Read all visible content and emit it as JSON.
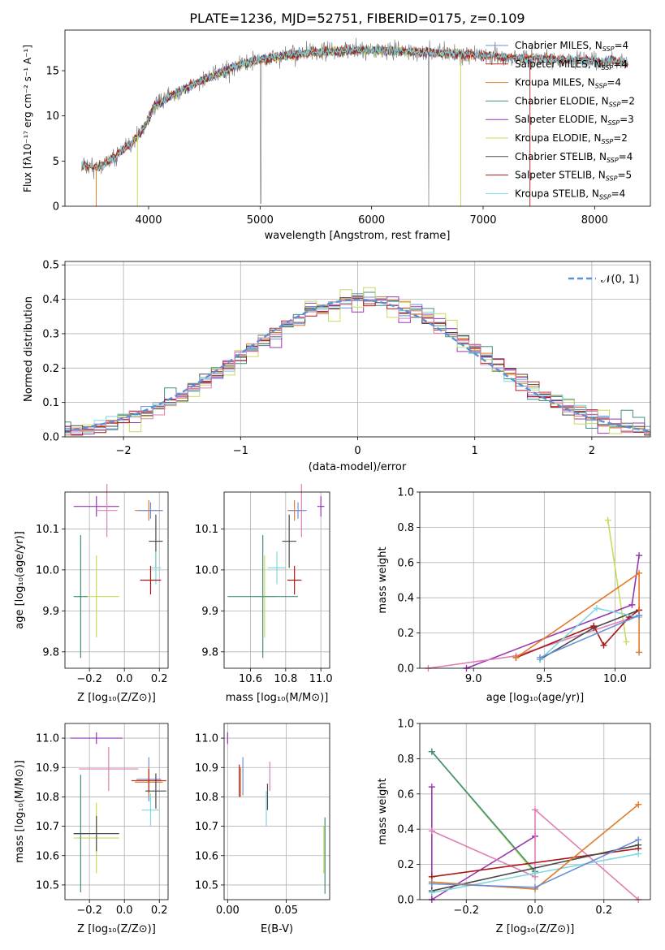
{
  "title": "PLATE=1236, MJD=52751, FIBERID=0175, z=0.109",
  "colors": {
    "chabrier_miles": "#6a8fd8",
    "salpeter_miles": "#b83225",
    "kroupa_miles": "#e07b27",
    "chabrier_elodie": "#3f8f7f",
    "salpeter_elodie": "#9a37b3",
    "kroupa_elodie": "#c6dc5a",
    "chabrier_stelib": "#4a4a4a",
    "salpeter_stelib": "#a81a1a",
    "kroupa_stelib": "#7fd8e0",
    "pink": "#e07fb3",
    "gray": "#808080",
    "gauss": "#5b8fd6"
  },
  "spectrum": {
    "xlabel": "wavelength [Angstrom, rest frame]",
    "ylabel": "Flux [fλ10⁻¹⁷ erg cm⁻² s⁻¹ A⁻¹]",
    "xticks": [
      "4000",
      "5000",
      "6000",
      "7000",
      "8000"
    ],
    "yticks": [
      "0",
      "5",
      "10",
      "15"
    ],
    "legend": [
      {
        "label": "Chabrier MILES, N",
        "sub": "SSP",
        "tail": "=4"
      },
      {
        "label": "Salpeter MILES, N",
        "sub": "SSP",
        "tail": "=4"
      },
      {
        "label": "Kroupa MILES, N",
        "sub": "SSP",
        "tail": "=4"
      },
      {
        "label": "Chabrier ELODIE, N",
        "sub": "SSP",
        "tail": "=2"
      },
      {
        "label": "Salpeter ELODIE, N",
        "sub": "SSP",
        "tail": "=3"
      },
      {
        "label": "Kroupa ELODIE, N",
        "sub": "SSP",
        "tail": "=2"
      },
      {
        "label": "Chabrier STELIB, N",
        "sub": "SSP",
        "tail": "=4"
      },
      {
        "label": "Salpeter STELIB, N",
        "sub": "SSP",
        "tail": "=5"
      },
      {
        "label": "Kroupa STELIB, N",
        "sub": "SSP",
        "tail": "=4"
      }
    ]
  },
  "histogram": {
    "xlabel": "(data-model)/error",
    "ylabel": "Normed distribution",
    "xticks": [
      "−2",
      "−1",
      "0",
      "1",
      "2"
    ],
    "yticks": [
      "0.0",
      "0.1",
      "0.2",
      "0.3",
      "0.4",
      "0.5"
    ],
    "legend": "𝒩(0, 1)"
  },
  "panels": {
    "p3": {
      "xlabel": "Z [log₁₀(Z/Z⊙)]",
      "ylabel": "age  [log₁₀(age/yr)]",
      "xticks": [
        "−0.2",
        "0.0",
        "0.2"
      ],
      "yticks": [
        "9.8",
        "9.9",
        "10.0",
        "10.1"
      ]
    },
    "p4": {
      "xlabel": "mass [log₁₀(M/M⊙)]",
      "xticks": [
        "10.6",
        "10.8",
        "11.0"
      ],
      "yticks": [
        "9.8",
        "9.9",
        "10.0",
        "10.1"
      ]
    },
    "p5": {
      "xlabel": "age  [log₁₀(age/yr)]",
      "ylabel": "mass weight",
      "xticks": [
        "9.0",
        "9.5",
        "10.0"
      ],
      "yticks": [
        "0.0",
        "0.2",
        "0.4",
        "0.6",
        "0.8",
        "1.0"
      ]
    },
    "p6": {
      "xlabel": "Z [log₁₀(Z/Z⊙)]",
      "ylabel": "mass [log₁₀(M/M⊙)]",
      "xticks": [
        "−0.2",
        "0.0",
        "0.2"
      ],
      "yticks": [
        "10.5",
        "10.6",
        "10.7",
        "10.8",
        "10.9",
        "11.0"
      ]
    },
    "p7": {
      "xlabel": "E(B-V)",
      "xticks": [
        "0.00",
        "0.05"
      ],
      "yticks": [
        "10.5",
        "10.6",
        "10.7",
        "10.8",
        "10.9",
        "11.0"
      ]
    },
    "p8": {
      "xlabel": "Z [log₁₀(Z/Z⊙)]",
      "ylabel": "mass weight",
      "xticks": [
        "−0.2",
        "0.0",
        "0.2"
      ],
      "yticks": [
        "0.0",
        "0.2",
        "0.4",
        "0.6",
        "0.8",
        "1.0"
      ]
    }
  },
  "chart_data": [
    {
      "type": "line",
      "title": "PLATE=1236, MJD=52751, FIBERID=0175, z=0.109",
      "xlabel": "wavelength [Angstrom, rest frame]",
      "ylabel": "Flux [fλ10⁻¹⁷ erg cm⁻² s⁻¹ A⁻¹]",
      "xlim": [
        3250,
        8500
      ],
      "ylim": [
        0,
        19.5
      ],
      "continuum": {
        "x": [
          3400,
          3550,
          3700,
          3850,
          3950,
          4050,
          4200,
          4400,
          4600,
          4800,
          5000,
          5200,
          5400,
          5600,
          5800,
          6000,
          6200,
          6400,
          6600,
          6800,
          7000,
          7200,
          7400,
          7600,
          7800,
          8000,
          8200,
          8300
        ],
        "y": [
          4.6,
          4.3,
          5.5,
          7.0,
          8.5,
          11.0,
          12.2,
          13.5,
          14.5,
          15.6,
          16.2,
          16.6,
          16.9,
          17.1,
          17.2,
          17.3,
          17.2,
          17.1,
          17.0,
          16.8,
          16.7,
          16.5,
          16.4,
          16.3,
          16.2,
          16.1,
          16.0,
          15.9
        ]
      },
      "series": [
        {
          "name": "Chabrier MILES, N_SSP=4"
        },
        {
          "name": "Salpeter MILES, N_SSP=4"
        },
        {
          "name": "Kroupa MILES, N_SSP=4"
        },
        {
          "name": "Chabrier ELODIE, N_SSP=2"
        },
        {
          "name": "Salpeter ELODIE, N_SSP=3"
        },
        {
          "name": "Kroupa ELODIE, N_SSP=2"
        },
        {
          "name": "Chabrier STELIB, N_SSP=4"
        },
        {
          "name": "Salpeter STELIB, N_SSP=5"
        },
        {
          "name": "Kroupa STELIB, N_SSP=4"
        }
      ]
    },
    {
      "type": "bar",
      "xlabel": "(data-model)/error",
      "ylabel": "Normed distribution",
      "xlim": [
        -2.5,
        2.5
      ],
      "ylim": [
        0,
        0.51
      ],
      "bin_width": 0.1,
      "gaussian": {
        "name": "𝒩(0, 1)",
        "mean": 0,
        "sigma": 1
      }
    },
    {
      "type": "scatter",
      "xlabel": "Z [log₁₀(Z/Z⊙)]",
      "ylabel": "age  [log₁₀(age/yr)]",
      "xlim": [
        -0.34,
        0.25
      ],
      "ylim": [
        9.76,
        10.19
      ],
      "points": [
        {
          "c": "kroupa_elodie",
          "x": -0.16,
          "y": 9.935,
          "xerr": 0.13,
          "yerr": 0.1
        },
        {
          "c": "chabrier_elodie",
          "x": -0.25,
          "y": 9.935,
          "xerr": 0.04,
          "yerr": 0.15
        },
        {
          "c": "salpeter_elodie",
          "x": -0.16,
          "y": 10.155,
          "xerr": 0.13,
          "yerr": 0.025
        },
        {
          "c": "pink",
          "x": -0.1,
          "y": 10.145,
          "xerr": 0.06,
          "yerr": 0.065
        },
        {
          "c": "kroupa_miles",
          "x": 0.14,
          "y": 10.145,
          "xerr": 0.08,
          "yerr": 0.025
        },
        {
          "c": "chabrier_miles",
          "x": 0.15,
          "y": 10.145,
          "xerr": 0.07,
          "yerr": 0.02
        },
        {
          "c": "chabrier_stelib",
          "x": 0.18,
          "y": 10.07,
          "xerr": 0.04,
          "yerr": 0.065
        },
        {
          "c": "kroupa_stelib",
          "x": 0.18,
          "y": 10.005,
          "xerr": 0.03,
          "yerr": 0.04
        },
        {
          "c": "salpeter_stelib",
          "x": 0.15,
          "y": 9.975,
          "xerr": 0.06,
          "yerr": 0.035
        }
      ]
    },
    {
      "type": "scatter",
      "xlabel": "mass [log₁₀(M/M⊙)]",
      "xlim": [
        10.45,
        11.05
      ],
      "ylim": [
        9.76,
        10.19
      ],
      "points": [
        {
          "c": "kroupa_elodie",
          "x": 10.68,
          "y": 9.935,
          "xerr": 0.06,
          "yerr": 0.1
        },
        {
          "c": "chabrier_elodie",
          "x": 10.67,
          "y": 9.935,
          "xerr": 0.2,
          "yerr": 0.15
        },
        {
          "c": "kroupa_stelib",
          "x": 10.75,
          "y": 10.005,
          "xerr": 0.05,
          "yerr": 0.04
        },
        {
          "c": "chabrier_stelib",
          "x": 10.82,
          "y": 10.07,
          "xerr": 0.04,
          "yerr": 0.065
        },
        {
          "c": "salpeter_stelib",
          "x": 10.85,
          "y": 9.975,
          "xerr": 0.04,
          "yerr": 0.035
        },
        {
          "c": "pink",
          "x": 10.89,
          "y": 10.145,
          "xerr": 0.02,
          "yerr": 0.065
        },
        {
          "c": "kroupa_miles",
          "x": 10.85,
          "y": 10.145,
          "xerr": 0.04,
          "yerr": 0.025
        },
        {
          "c": "chabrier_miles",
          "x": 10.87,
          "y": 10.145,
          "xerr": 0.05,
          "yerr": 0.02
        },
        {
          "c": "salpeter_elodie",
          "x": 11.0,
          "y": 10.155,
          "xerr": 0.02,
          "yerr": 0.025
        }
      ]
    },
    {
      "type": "line",
      "xlabel": "age  [log₁₀(age/yr)]",
      "ylabel": "mass weight",
      "xlim": [
        8.62,
        10.25
      ],
      "ylim": [
        0,
        1.0
      ],
      "series": [
        {
          "c": "kroupa_elodie",
          "x": [
            9.95,
            10.08
          ],
          "y": [
            0.84,
            0.15
          ]
        },
        {
          "c": "salpeter_elodie",
          "x": [
            8.95,
            10.12,
            10.17
          ],
          "y": [
            0.0,
            0.36,
            0.64
          ]
        },
        {
          "c": "pink",
          "x": [
            8.68,
            9.3,
            10.17
          ],
          "y": [
            0.0,
            0.07,
            0.3
          ]
        },
        {
          "c": "chabrier_stelib",
          "x": [
            9.47,
            9.85,
            10.17
          ],
          "y": [
            0.05,
            0.23,
            0.33
          ]
        },
        {
          "c": "salpeter_stelib",
          "x": [
            9.3,
            9.85,
            9.92,
            10.1,
            10.17
          ],
          "y": [
            0.06,
            0.24,
            0.13,
            0.29,
            0.33
          ]
        },
        {
          "c": "kroupa_stelib",
          "x": [
            9.47,
            9.87,
            10.17
          ],
          "y": [
            0.05,
            0.34,
            0.29
          ]
        },
        {
          "c": "kroupa_miles",
          "x": [
            9.3,
            10.17,
            10.17
          ],
          "y": [
            0.06,
            0.54,
            0.09
          ]
        },
        {
          "c": "chabrier_miles",
          "x": [
            9.47,
            10.17
          ],
          "y": [
            0.06,
            0.3
          ]
        }
      ]
    },
    {
      "type": "scatter",
      "xlabel": "Z [log₁₀(Z/Z⊙)]",
      "ylabel": "mass [log₁₀(M/M⊙)]",
      "xlim": [
        -0.34,
        0.25
      ],
      "ylim": [
        10.45,
        11.05
      ],
      "points": [
        {
          "c": "kroupa_elodie",
          "x": -0.16,
          "y": 10.66,
          "xerr": 0.13,
          "yerr": 0.12
        },
        {
          "c": "chabrier_elodie",
          "x": -0.25,
          "y": 10.675,
          "xerr": 0.04,
          "yerr": 0.2
        },
        {
          "c": "chabrier_stelib",
          "x": -0.16,
          "y": 10.675,
          "xerr": 0.13,
          "yerr": 0.06
        },
        {
          "c": "salpeter_elodie",
          "x": -0.16,
          "y": 11.0,
          "xerr": 0.15,
          "yerr": 0.02
        },
        {
          "c": "pink",
          "x": -0.09,
          "y": 10.895,
          "xerr": 0.17,
          "yerr": 0.075
        },
        {
          "c": "chabrier_miles",
          "x": 0.14,
          "y": 10.86,
          "xerr": 0.07,
          "yerr": 0.075
        },
        {
          "c": "kroupa_miles",
          "x": 0.14,
          "y": 10.85,
          "xerr": 0.08,
          "yerr": 0.05
        },
        {
          "c": "salpeter_miles",
          "x": 0.14,
          "y": 10.855,
          "xerr": 0.1,
          "yerr": 0.04
        },
        {
          "c": "chabrier_stelib",
          "x": 0.18,
          "y": 10.82,
          "xerr": 0.06,
          "yerr": 0.06
        },
        {
          "c": "kroupa_stelib",
          "x": 0.15,
          "y": 10.755,
          "xerr": 0.05,
          "yerr": 0.055
        }
      ]
    },
    {
      "type": "scatter",
      "xlabel": "E(B-V)",
      "xlim": [
        -0.003,
        0.087
      ],
      "ylim": [
        10.45,
        11.05
      ],
      "points": [
        {
          "c": "salpeter_elodie",
          "x": 0.0,
          "y": 11.0,
          "xerr": 0,
          "yerr": 0.02
        },
        {
          "c": "chabrier_miles",
          "x": 0.013,
          "y": 10.87,
          "xerr": 0,
          "yerr": 0.065
        },
        {
          "c": "salpeter_stelib",
          "x": 0.01,
          "y": 10.855,
          "xerr": 0,
          "yerr": 0.055
        },
        {
          "c": "kroupa_miles",
          "x": 0.011,
          "y": 10.85,
          "xerr": 0,
          "yerr": 0.05
        },
        {
          "c": "pink",
          "x": 0.036,
          "y": 10.87,
          "xerr": 0,
          "yerr": 0.05
        },
        {
          "c": "chabrier_stelib",
          "x": 0.034,
          "y": 10.8,
          "xerr": 0,
          "yerr": 0.045
        },
        {
          "c": "kroupa_stelib",
          "x": 0.033,
          "y": 10.76,
          "xerr": 0,
          "yerr": 0.06
        },
        {
          "c": "kroupa_elodie",
          "x": 0.082,
          "y": 10.62,
          "xerr": 0,
          "yerr": 0.08
        },
        {
          "c": "chabrier_elodie",
          "x": 0.083,
          "y": 10.6,
          "xerr": 0,
          "yerr": 0.13
        }
      ]
    },
    {
      "type": "line",
      "xlabel": "Z [log₁₀(Z/Z⊙)]",
      "ylabel": "mass weight",
      "xlim": [
        -0.335,
        0.335
      ],
      "ylim": [
        0,
        1.0
      ],
      "series": [
        {
          "c": "kroupa_elodie",
          "x": [
            -0.3,
            0.0
          ],
          "y": [
            0.84,
            0.15
          ]
        },
        {
          "c": "chabrier_elodie",
          "x": [
            -0.3,
            0.0
          ],
          "y": [
            0.84,
            0.16
          ]
        },
        {
          "c": "salpeter_elodie",
          "x": [
            -0.3,
            -0.3,
            0.0
          ],
          "y": [
            0.64,
            0.0,
            0.36
          ]
        },
        {
          "c": "pink",
          "x": [
            -0.3,
            0.0,
            0.0,
            0.3
          ],
          "y": [
            0.39,
            0.13,
            0.51,
            0.0
          ]
        },
        {
          "c": "salpeter_stelib",
          "x": [
            -0.3,
            0.3
          ],
          "y": [
            0.13,
            0.29
          ]
        },
        {
          "c": "chabrier_stelib",
          "x": [
            -0.3,
            0.3
          ],
          "y": [
            0.05,
            0.31
          ]
        },
        {
          "c": "kroupa_stelib",
          "x": [
            -0.3,
            0.0,
            0.3
          ],
          "y": [
            0.04,
            0.15,
            0.26
          ]
        },
        {
          "c": "kroupa_miles",
          "x": [
            -0.3,
            0.0,
            0.3
          ],
          "y": [
            0.1,
            0.06,
            0.54
          ]
        },
        {
          "c": "chabrier_miles",
          "x": [
            -0.3,
            0.0,
            0.3
          ],
          "y": [
            0.09,
            0.07,
            0.34
          ]
        }
      ]
    }
  ]
}
